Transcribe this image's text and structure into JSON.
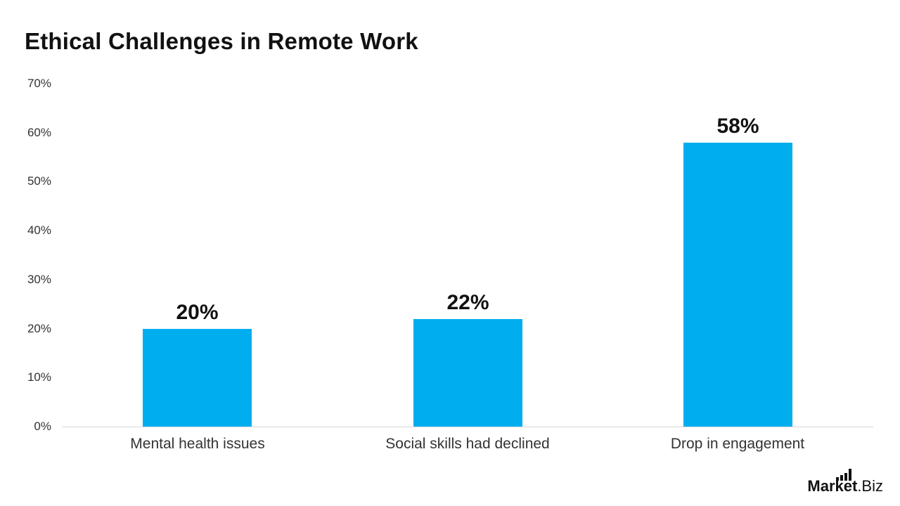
{
  "title": "Ethical Challenges in Remote Work",
  "chart_data": {
    "type": "bar",
    "title": "Ethical Challenges in Remote Work",
    "categories": [
      "Mental health issues",
      "Social skills had declined",
      "Drop in engagement"
    ],
    "values": [
      20,
      22,
      58
    ],
    "value_labels": [
      "20%",
      "22%",
      "58%"
    ],
    "xlabel": "",
    "ylabel": "",
    "ylim": [
      0,
      70
    ],
    "ytick_step": 10,
    "ytick_labels": [
      "70%",
      "60%",
      "50%",
      "40%",
      "30%",
      "20%",
      "10%",
      "0%"
    ],
    "grid": false,
    "legend": false,
    "bar_color": "#00AEEF",
    "axis_line_color": "#d9d9d9"
  },
  "branding": {
    "logo_primary": "Market",
    "logo_secondary": ".Biz",
    "logo_icon": "bar-chart-icon"
  }
}
